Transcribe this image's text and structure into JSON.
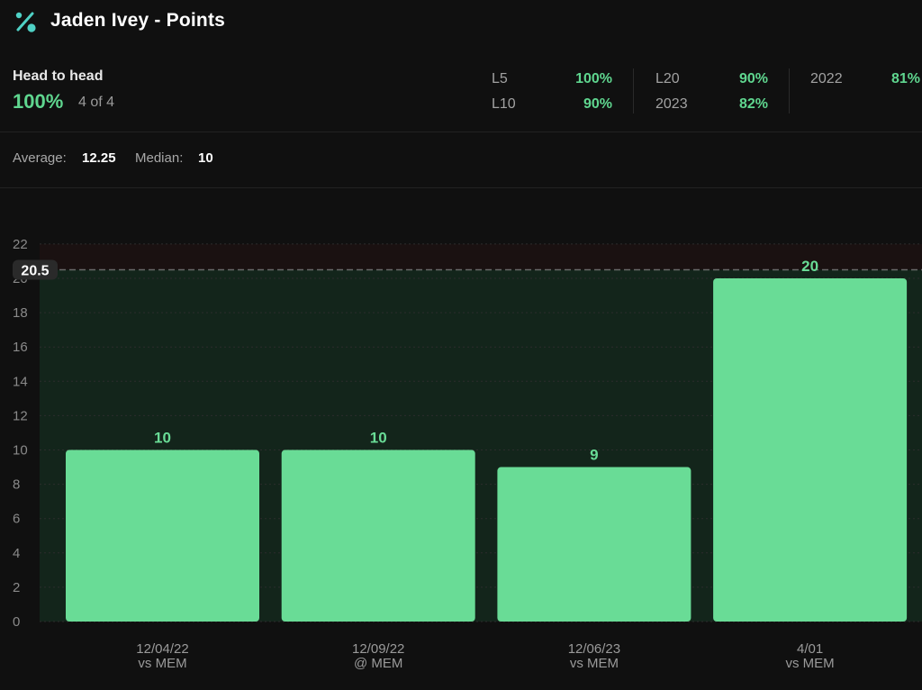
{
  "header": {
    "title": "Jaden Ivey - Points",
    "icon": "percent-icon",
    "accent_color": "#4fd1c5"
  },
  "head_to_head": {
    "label": "Head to head",
    "percent": "100%",
    "count": "4 of 4"
  },
  "stats": {
    "l5": {
      "label": "L5",
      "value": "100%"
    },
    "l10": {
      "label": "L10",
      "value": "90%"
    },
    "l20": {
      "label": "L20",
      "value": "90%"
    },
    "y2023": {
      "label": "2023",
      "value": "82%"
    },
    "y2022": {
      "label": "2022",
      "value": "81%"
    }
  },
  "summary": {
    "average_label": "Average:",
    "average_value": "12.25",
    "median_label": "Median:",
    "median_value": "10"
  },
  "colors": {
    "bar": "#69dc96",
    "bar_label": "#69dc96",
    "positive": "#5fd68f",
    "zone_fill": "#13251b",
    "background": "#101010"
  },
  "chart_data": {
    "type": "bar",
    "categories": [
      "12/04/22",
      "12/09/22",
      "12/06/23",
      "4/01"
    ],
    "subcategories": [
      "vs MEM",
      "@ MEM",
      "vs MEM",
      "vs MEM"
    ],
    "values": [
      10,
      10,
      9,
      20
    ],
    "line": 20.5,
    "line_label": "20.5",
    "ylim": [
      0,
      22
    ],
    "yticks": [
      0,
      2,
      4,
      6,
      8,
      10,
      12,
      14,
      16,
      18,
      20,
      22
    ],
    "grid": true,
    "title": "",
    "xlabel": "",
    "ylabel": ""
  }
}
